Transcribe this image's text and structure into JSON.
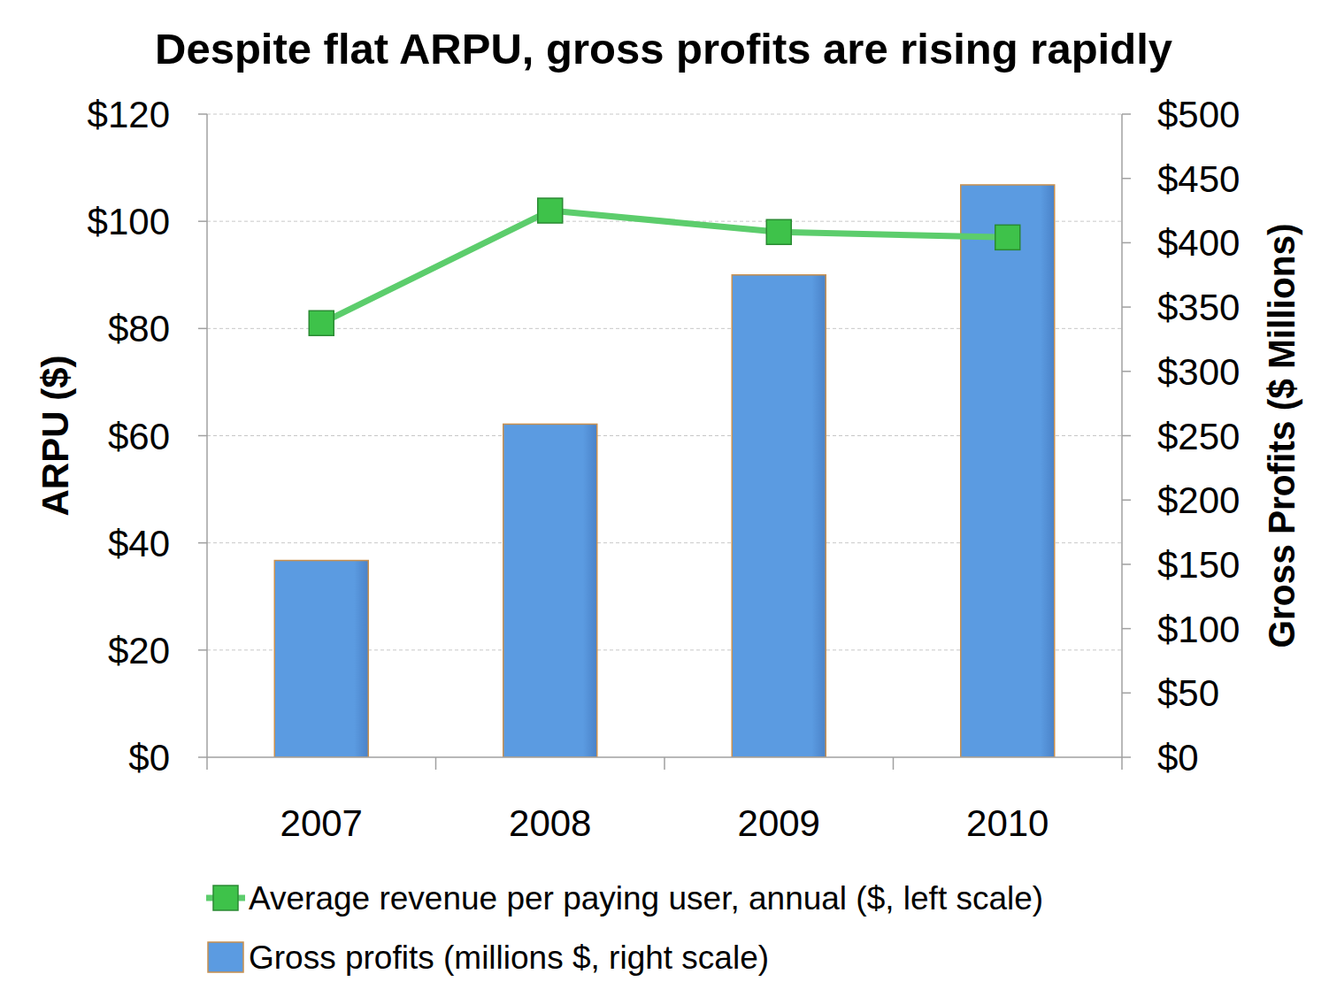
{
  "chart_data": {
    "type": "bar",
    "title": "Despite flat ARPU, gross profits are rising rapidly",
    "categories": [
      "2007",
      "2008",
      "2009",
      "2010"
    ],
    "y_label": "ARPU ($)",
    "y2_label": "Gross Profits ($ Millions)",
    "ylim": [
      0,
      120
    ],
    "yticks": [
      {
        "value": 0,
        "label": "$0"
      },
      {
        "value": 20,
        "label": "$20"
      },
      {
        "value": 40,
        "label": "$40"
      },
      {
        "value": 60,
        "label": "$60"
      },
      {
        "value": 80,
        "label": "$80"
      },
      {
        "value": 100,
        "label": "$100"
      },
      {
        "value": 120,
        "label": "$120"
      }
    ],
    "y2lim": [
      0,
      500
    ],
    "y2ticks": [
      {
        "value": 0,
        "label": "$0"
      },
      {
        "value": 50,
        "label": "$50"
      },
      {
        "value": 100,
        "label": "$100"
      },
      {
        "value": 150,
        "label": "$150"
      },
      {
        "value": 200,
        "label": "$200"
      },
      {
        "value": 250,
        "label": "$250"
      },
      {
        "value": 300,
        "label": "$300"
      },
      {
        "value": 350,
        "label": "$350"
      },
      {
        "value": 400,
        "label": "$400"
      },
      {
        "value": 450,
        "label": "$450"
      },
      {
        "value": 500,
        "label": "$500"
      }
    ],
    "grid": true,
    "legend": "bottom",
    "series": [
      {
        "name": "Average revenue per paying user, annual ($, left scale)",
        "type": "line",
        "color": "#5ccd6c",
        "marker": "square",
        "values": [
          81,
          102,
          98,
          97
        ]
      },
      {
        "name": "Gross profits (millions $, right scale)",
        "type": "bar",
        "axis": "y2",
        "color": "#5b9be1",
        "values": [
          153,
          259,
          375,
          445
        ]
      }
    ]
  }
}
